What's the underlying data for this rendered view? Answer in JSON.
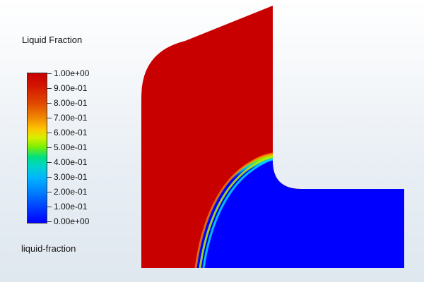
{
  "legend": {
    "title": "Liquid Fraction",
    "ticks": [
      "1.00e+00",
      "9.00e-01",
      "8.00e-01",
      "7.00e-01",
      "6.00e-01",
      "5.00e-01",
      "4.00e-01",
      "3.00e-01",
      "2.00e-01",
      "1.00e-01",
      "0.00e+00"
    ]
  },
  "footer_label": "liquid-fraction",
  "colors": {
    "liquid": "#c80000",
    "solid": "#0000ff"
  }
}
